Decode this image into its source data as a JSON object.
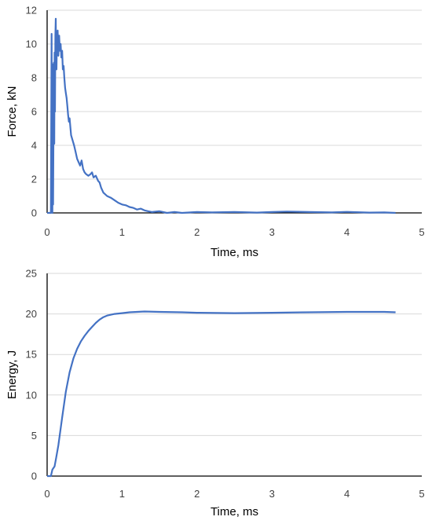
{
  "chart_data": [
    {
      "type": "line",
      "title": "",
      "xlabel": "Time, ms",
      "ylabel": "Force, kN",
      "xlim": [
        0,
        5
      ],
      "ylim": [
        0,
        12
      ],
      "xticks": [
        "0",
        "1",
        "2",
        "3",
        "4",
        "5"
      ],
      "yticks": [
        "0",
        "2",
        "4",
        "6",
        "8",
        "10",
        "12"
      ],
      "grid": true,
      "legend": "none",
      "color": "#4472c4",
      "series": [
        {
          "x": [
            0.0,
            0.05,
            0.06,
            0.065,
            0.07,
            0.075,
            0.08,
            0.085,
            0.09,
            0.095,
            0.1,
            0.105,
            0.11,
            0.115,
            0.12,
            0.125,
            0.13,
            0.14,
            0.15,
            0.16,
            0.17,
            0.18,
            0.19,
            0.2,
            0.21,
            0.22,
            0.23,
            0.24,
            0.25,
            0.26,
            0.27,
            0.28,
            0.29,
            0.3,
            0.32,
            0.34,
            0.36,
            0.38,
            0.4,
            0.42,
            0.44,
            0.46,
            0.48,
            0.5,
            0.52,
            0.55,
            0.58,
            0.6,
            0.62,
            0.65,
            0.68,
            0.7,
            0.72,
            0.75,
            0.8,
            0.85,
            0.9,
            0.95,
            1.0,
            1.05,
            1.1,
            1.15,
            1.2,
            1.25,
            1.3,
            1.35,
            1.4,
            1.5,
            1.6,
            1.7,
            1.8,
            2.0,
            2.2,
            2.5,
            2.8,
            3.0,
            3.2,
            3.5,
            3.8,
            4.0,
            4.3,
            4.5,
            4.65
          ],
          "y": [
            0,
            0,
            10.6,
            3.5,
            0.0,
            8.8,
            0.5,
            5.0,
            8.9,
            4.1,
            9.5,
            6.0,
            10.5,
            11.5,
            9.0,
            8.5,
            10.0,
            10.8,
            9.3,
            10.5,
            9.6,
            10.0,
            9.2,
            9.6,
            8.5,
            8.7,
            8.0,
            7.4,
            7.1,
            6.8,
            6.3,
            5.8,
            5.4,
            5.6,
            4.6,
            4.3,
            4.0,
            3.6,
            3.2,
            3.0,
            2.8,
            3.1,
            2.6,
            2.4,
            2.3,
            2.2,
            2.3,
            2.4,
            2.1,
            2.2,
            1.9,
            1.8,
            1.5,
            1.2,
            1.0,
            0.9,
            0.75,
            0.6,
            0.5,
            0.45,
            0.35,
            0.3,
            0.2,
            0.25,
            0.15,
            0.1,
            0.05,
            0.1,
            0.0,
            0.05,
            0.0,
            0.05,
            0.03,
            0.05,
            0.02,
            0.05,
            0.08,
            0.05,
            0.03,
            0.06,
            0.02,
            0.03,
            0.0
          ]
        }
      ]
    },
    {
      "type": "line",
      "title": "",
      "xlabel": "Time, ms",
      "ylabel": "Energy, J",
      "xlim": [
        0,
        5
      ],
      "ylim": [
        0,
        25
      ],
      "xticks": [
        "0",
        "1",
        "2",
        "3",
        "4",
        "5"
      ],
      "yticks": [
        "0",
        "5",
        "10",
        "15",
        "20",
        "25"
      ],
      "grid": true,
      "legend": "none",
      "color": "#4472c4",
      "series": [
        {
          "x": [
            0.0,
            0.05,
            0.07,
            0.1,
            0.12,
            0.15,
            0.2,
            0.25,
            0.3,
            0.35,
            0.4,
            0.45,
            0.5,
            0.55,
            0.6,
            0.65,
            0.7,
            0.75,
            0.8,
            0.9,
            1.0,
            1.1,
            1.2,
            1.3,
            1.5,
            1.8,
            2.0,
            2.5,
            3.0,
            3.5,
            4.0,
            4.5,
            4.65
          ],
          "y": [
            0,
            0,
            0.8,
            1.2,
            2.2,
            3.8,
            7.2,
            10.4,
            12.8,
            14.5,
            15.7,
            16.6,
            17.3,
            17.9,
            18.4,
            18.9,
            19.3,
            19.6,
            19.8,
            20.0,
            20.1,
            20.2,
            20.25,
            20.3,
            20.25,
            20.2,
            20.15,
            20.1,
            20.15,
            20.2,
            20.25,
            20.25,
            20.2
          ]
        }
      ]
    }
  ]
}
